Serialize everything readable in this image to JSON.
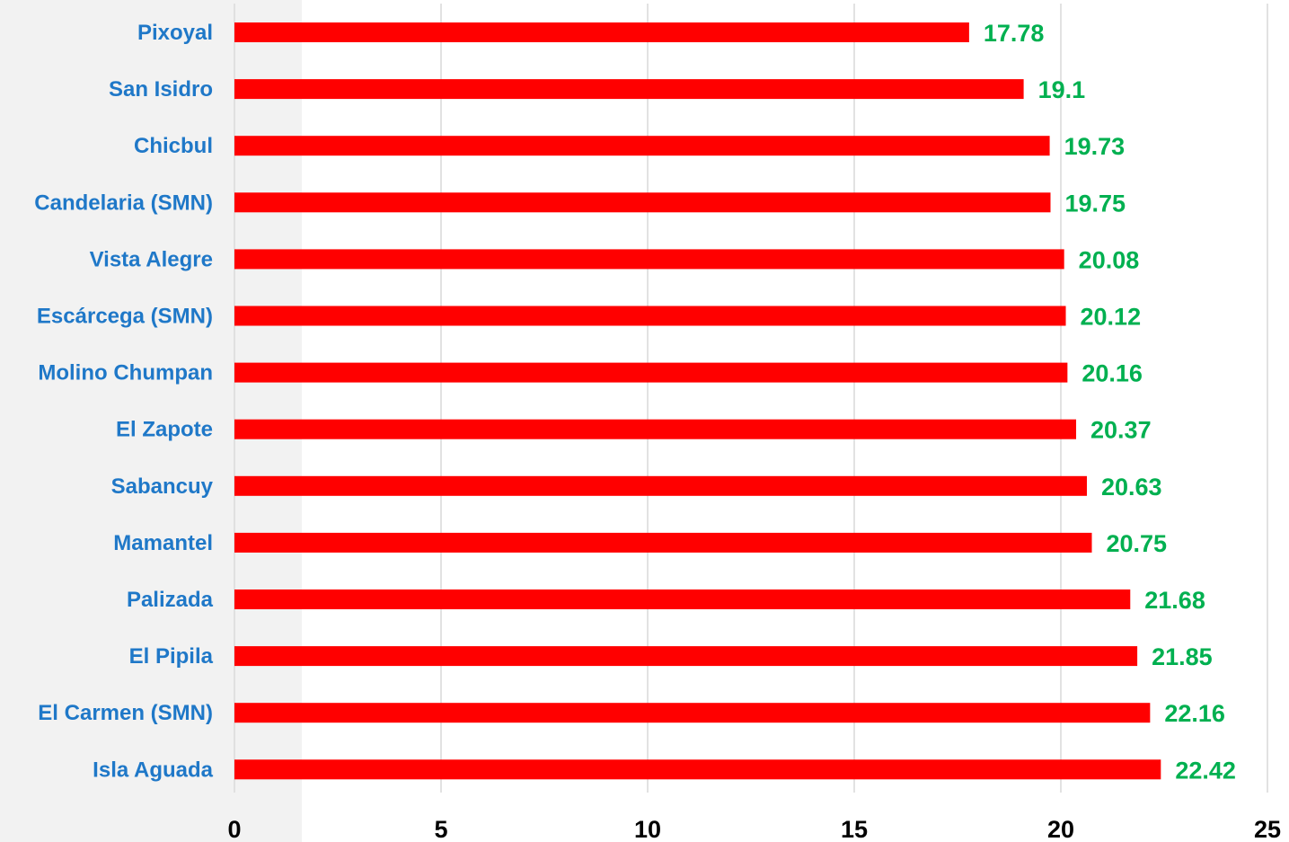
{
  "chart_data": {
    "type": "bar",
    "orientation": "horizontal",
    "categories": [
      "Pixoyal",
      "San Isidro",
      "Chicbul",
      "Candelaria (SMN)",
      "Vista Alegre",
      "Escárcega (SMN)",
      "Molino Chumpan",
      "El Zapote",
      "Sabancuy",
      "Mamantel",
      "Palizada",
      "El Pipila",
      "El Carmen (SMN)",
      "Isla Aguada"
    ],
    "values": [
      17.78,
      19.1,
      19.73,
      19.75,
      20.08,
      20.12,
      20.16,
      20.37,
      20.63,
      20.75,
      21.68,
      21.85,
      22.16,
      22.42
    ],
    "data_labels": [
      "17.78",
      "19.1",
      "19.73",
      "19.75",
      "20.08",
      "20.12",
      "20.16",
      "20.37",
      "20.63",
      "20.75",
      "21.68",
      "21.85",
      "22.16",
      "22.42"
    ],
    "title": "",
    "xlabel": "",
    "ylabel": "",
    "xlim": [
      0,
      25
    ],
    "xticks": [
      "0",
      "5",
      "10",
      "15",
      "20",
      "25"
    ],
    "grid": "vertical",
    "legend": "none",
    "colors": {
      "bar": "#ff0000",
      "category_label": "#1f78c8",
      "value_label": "#00b050",
      "tick_label": "#000000",
      "grid": "#d9d9d9",
      "label_band": "#f2f2f2"
    }
  }
}
